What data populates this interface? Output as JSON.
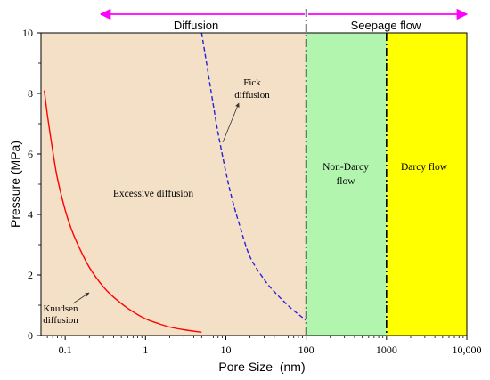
{
  "chart_data": {
    "type": "line",
    "xlabel": "Pore Size  (nm)",
    "ylabel": "Pressure (MPa)",
    "x_scale": "log",
    "xlim": [
      0.05,
      10000
    ],
    "ylim": [
      0,
      10
    ],
    "x_ticks": [
      {
        "value": 0.1,
        "label": "0.1"
      },
      {
        "value": 1,
        "label": "1"
      },
      {
        "value": 10,
        "label": "10"
      },
      {
        "value": 100,
        "label": "100"
      },
      {
        "value": 1000,
        "label": "1000"
      },
      {
        "value": 10000,
        "label": "10,000"
      }
    ],
    "y_ticks": [
      0,
      2,
      4,
      6,
      8,
      10
    ],
    "grid": false,
    "legend": "none",
    "colors": {
      "diffusion_region": "#f4e0c6",
      "non_darcy_region": "#b1f5ae",
      "darcy_region": "#ffff00",
      "knudsen_curve": "#ff0000",
      "fick_curve": "#2222dd",
      "arrow": "#ff00ff"
    },
    "regions": [
      {
        "name": "Excessive diffusion",
        "x_range": [
          0.05,
          100
        ]
      },
      {
        "name": "Non-Darcy flow",
        "x_range": [
          100,
          1000
        ]
      },
      {
        "name": "Darcy flow",
        "x_range": [
          1000,
          10000
        ]
      }
    ],
    "region_labels": {
      "excessive": "Excessive diffusion",
      "non_darcy_1": "Non-Darcy",
      "non_darcy_2": "flow",
      "darcy": "Darcy flow"
    },
    "top_arrows": {
      "diffusion": "Diffusion",
      "seepage": "Seepage flow"
    },
    "annotations": {
      "knudsen_1": "Knudsen",
      "knudsen_2": "diffusion",
      "fick_1": "Fick",
      "fick_2": "diffusion"
    },
    "series": [
      {
        "name": "Knudsen diffusion",
        "style": "solid",
        "x": [
          0.055,
          0.06,
          0.07,
          0.08,
          0.1,
          0.12,
          0.15,
          0.2,
          0.3,
          0.4,
          0.6,
          1,
          1.5,
          2,
          3,
          5
        ],
        "y": [
          8.1,
          7.3,
          6.1,
          5.2,
          4.15,
          3.5,
          2.9,
          2.25,
          1.6,
          1.27,
          0.9,
          0.55,
          0.38,
          0.28,
          0.19,
          0.11
        ]
      },
      {
        "name": "Fick diffusion",
        "style": "dashed",
        "x": [
          5,
          6,
          7,
          8,
          10,
          12,
          15,
          20,
          30,
          40,
          60,
          80,
          100
        ],
        "y": [
          10,
          8.7,
          7.6,
          6.7,
          5.4,
          4.5,
          3.6,
          2.6,
          1.85,
          1.45,
          0.98,
          0.7,
          0.5
        ]
      }
    ]
  }
}
